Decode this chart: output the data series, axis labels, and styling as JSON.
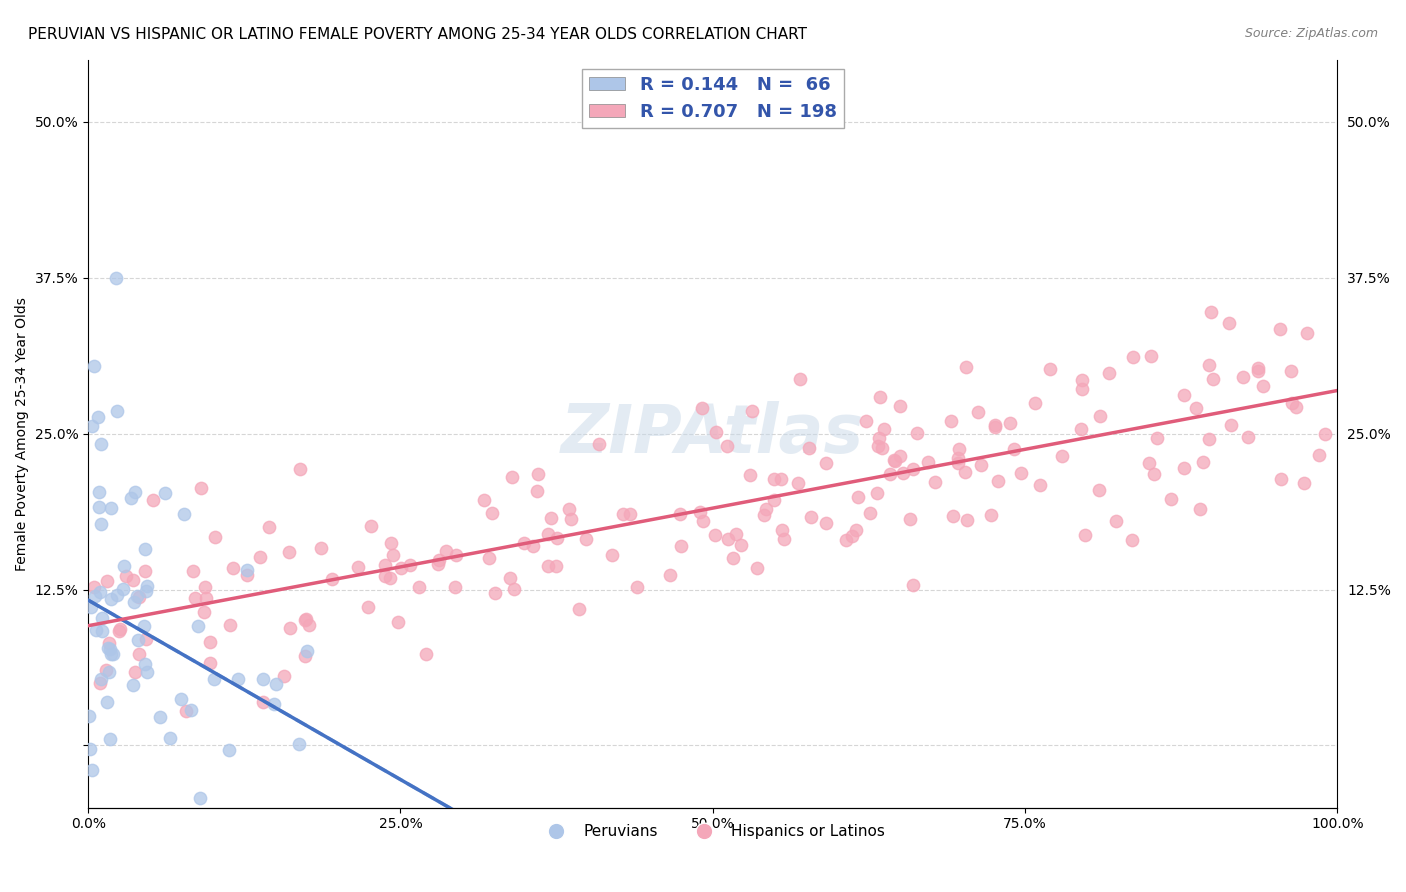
{
  "title": "PERUVIAN VS HISPANIC OR LATINO FEMALE POVERTY AMONG 25-34 YEAR OLDS CORRELATION CHART",
  "source": "Source: ZipAtlas.com",
  "ylabel": "Female Poverty Among 25-34 Year Olds",
  "xlabel": "",
  "xlim": [
    0,
    1.0
  ],
  "ylim": [
    -0.05,
    0.55
  ],
  "yticks": [
    0.0,
    0.125,
    0.25,
    0.375,
    0.5
  ],
  "ytick_labels": [
    "",
    "12.5%",
    "25.0%",
    "37.5%",
    "50.0%"
  ],
  "xtick_labels": [
    "0.0%",
    "25.0%",
    "50.0%",
    "75.0%",
    "100.0%"
  ],
  "xticks": [
    0.0,
    0.25,
    0.5,
    0.75,
    1.0
  ],
  "peruvian_color": "#aec6e8",
  "hispanic_color": "#f4a7b9",
  "peruvian_line_color": "#4472c4",
  "hispanic_line_color": "#e05c7a",
  "grid_color": "#cccccc",
  "watermark_color": "#c8d8e8",
  "R_peruvian": 0.144,
  "N_peruvian": 66,
  "R_hispanic": 0.707,
  "N_hispanic": 198,
  "legend_label_peruvian": "Peruvians",
  "legend_label_hispanic": "Hispanics or Latinos",
  "background_color": "#ffffff",
  "title_fontsize": 11,
  "label_fontsize": 10,
  "tick_fontsize": 10,
  "legend_stat_color": "#3355aa"
}
